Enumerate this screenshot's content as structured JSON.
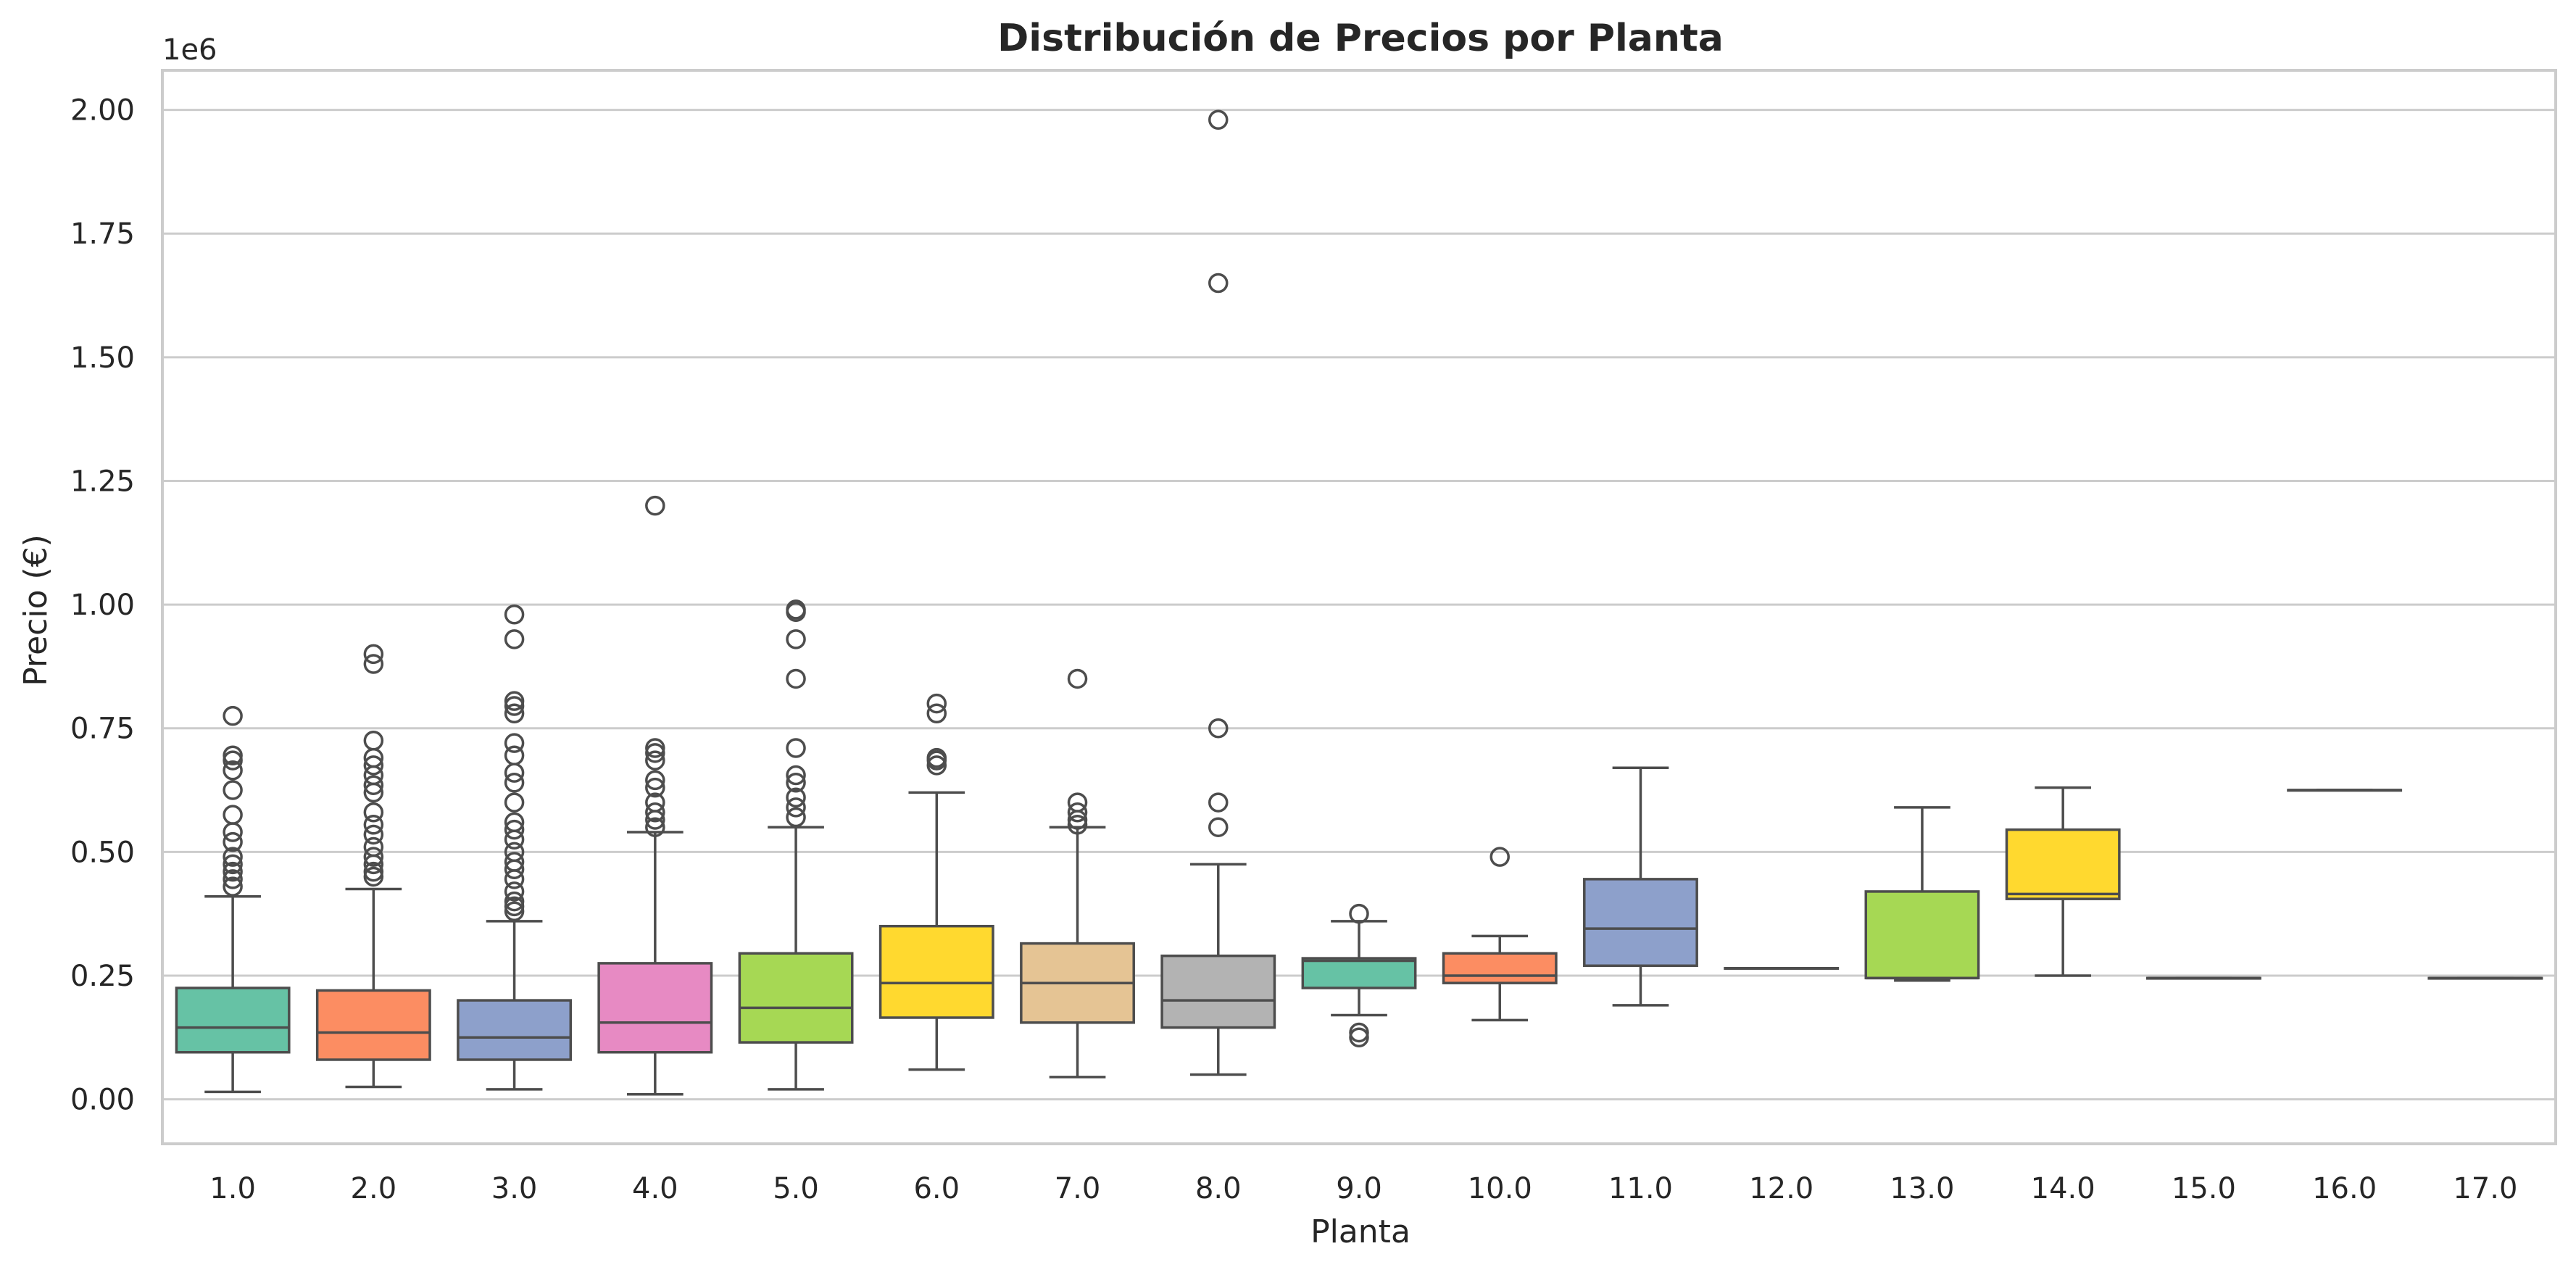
{
  "chart_data": {
    "type": "box",
    "title": "Distribución de Precios por Planta",
    "xlabel": "Planta",
    "ylabel": "Precio (€)",
    "y_offset_label": "1e6",
    "ylim": [
      -0.09,
      2.08
    ],
    "yticks": [
      0.0,
      0.25,
      0.5,
      0.75,
      1.0,
      1.25,
      1.5,
      1.75,
      2.0
    ],
    "ytick_labels": [
      "0.00",
      "0.25",
      "0.50",
      "0.75",
      "1.00",
      "1.25",
      "1.50",
      "1.75",
      "2.00"
    ],
    "grid": "horizontal",
    "colors": {
      "line": "#4d4d4d",
      "grid": "#cccccc",
      "spine": "#cccccc",
      "text": "#262626",
      "palette": [
        "#66c2a5",
        "#fc8d62",
        "#8da0cb",
        "#e78ac3",
        "#a6d854",
        "#ffd92f",
        "#e5c494",
        "#b3b3b3"
      ]
    },
    "categories": [
      "1.0",
      "2.0",
      "3.0",
      "4.0",
      "5.0",
      "6.0",
      "7.0",
      "8.0",
      "9.0",
      "10.0",
      "11.0",
      "12.0",
      "13.0",
      "14.0",
      "15.0",
      "16.0",
      "17.0"
    ],
    "boxes": [
      {
        "whislo": 0.015,
        "q1": 0.095,
        "med": 0.145,
        "q3": 0.225,
        "whishi": 0.41,
        "fliers": [
          0.43,
          0.445,
          0.46,
          0.475,
          0.49,
          0.52,
          0.54,
          0.575,
          0.625,
          0.665,
          0.685,
          0.695,
          0.775
        ]
      },
      {
        "whislo": 0.025,
        "q1": 0.08,
        "med": 0.135,
        "q3": 0.22,
        "whishi": 0.425,
        "fliers": [
          0.45,
          0.46,
          0.475,
          0.49,
          0.51,
          0.535,
          0.555,
          0.58,
          0.62,
          0.635,
          0.655,
          0.675,
          0.69,
          0.725,
          0.88,
          0.9
        ]
      },
      {
        "whislo": 0.02,
        "q1": 0.08,
        "med": 0.125,
        "q3": 0.2,
        "whishi": 0.36,
        "fliers": [
          0.38,
          0.39,
          0.4,
          0.42,
          0.445,
          0.465,
          0.48,
          0.5,
          0.525,
          0.545,
          0.56,
          0.6,
          0.64,
          0.66,
          0.695,
          0.72,
          0.78,
          0.795,
          0.805,
          0.93,
          0.98
        ]
      },
      {
        "whislo": 0.01,
        "q1": 0.095,
        "med": 0.155,
        "q3": 0.275,
        "whishi": 0.54,
        "fliers": [
          0.55,
          0.565,
          0.58,
          0.6,
          0.63,
          0.645,
          0.685,
          0.7,
          0.71,
          1.2
        ]
      },
      {
        "whislo": 0.02,
        "q1": 0.115,
        "med": 0.185,
        "q3": 0.295,
        "whishi": 0.55,
        "fliers": [
          0.57,
          0.59,
          0.61,
          0.64,
          0.655,
          0.71,
          0.85,
          0.93,
          0.985,
          0.99
        ]
      },
      {
        "whislo": 0.06,
        "q1": 0.165,
        "med": 0.235,
        "q3": 0.35,
        "whishi": 0.62,
        "fliers": [
          0.675,
          0.685,
          0.69,
          0.78,
          0.8
        ]
      },
      {
        "whislo": 0.045,
        "q1": 0.155,
        "med": 0.235,
        "q3": 0.315,
        "whishi": 0.55,
        "fliers": [
          0.555,
          0.565,
          0.58,
          0.6,
          0.85
        ]
      },
      {
        "whislo": 0.05,
        "q1": 0.145,
        "med": 0.2,
        "q3": 0.29,
        "whishi": 0.475,
        "fliers": [
          0.55,
          0.6,
          0.75,
          1.65,
          1.98
        ]
      },
      {
        "whislo": 0.17,
        "q1": 0.225,
        "med": 0.28,
        "q3": 0.285,
        "whishi": 0.36,
        "fliers": [
          0.125,
          0.135,
          0.375
        ]
      },
      {
        "whislo": 0.16,
        "q1": 0.235,
        "med": 0.25,
        "q3": 0.295,
        "whishi": 0.33,
        "fliers": [
          0.49
        ]
      },
      {
        "whislo": 0.19,
        "q1": 0.27,
        "med": 0.345,
        "q3": 0.445,
        "whishi": 0.67,
        "fliers": []
      },
      {
        "whislo": 0.265,
        "q1": 0.265,
        "med": 0.265,
        "q3": 0.265,
        "whishi": 0.265,
        "fliers": []
      },
      {
        "whislo": 0.24,
        "q1": 0.245,
        "med": 0.245,
        "q3": 0.42,
        "whishi": 0.59,
        "fliers": []
      },
      {
        "whislo": 0.25,
        "q1": 0.405,
        "med": 0.415,
        "q3": 0.545,
        "whishi": 0.63,
        "fliers": []
      },
      {
        "whislo": 0.245,
        "q1": 0.245,
        "med": 0.245,
        "q3": 0.245,
        "whishi": 0.245,
        "fliers": []
      },
      {
        "whislo": 0.625,
        "q1": 0.625,
        "med": 0.625,
        "q3": 0.625,
        "whishi": 0.625,
        "fliers": []
      },
      {
        "whislo": 0.245,
        "q1": 0.245,
        "med": 0.245,
        "q3": 0.245,
        "whishi": 0.245,
        "fliers": []
      }
    ]
  }
}
